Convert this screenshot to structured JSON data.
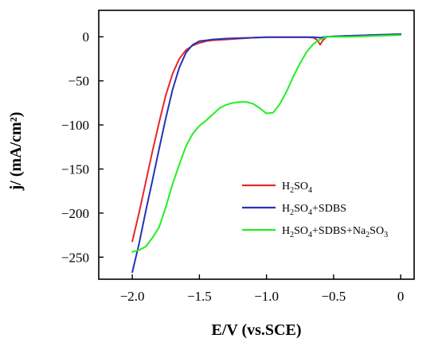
{
  "chart_data": {
    "type": "line",
    "xlabel": "E/V (vs.SCE)",
    "ylabel": "j/ (mA/cm²)",
    "xlim": [
      -2.25,
      0.1
    ],
    "ylim": [
      -275,
      30
    ],
    "xticks": [
      -2.0,
      -1.5,
      -1.0,
      -0.5,
      0
    ],
    "xtick_labels": [
      "−2.0",
      "−1.5",
      "−1.0",
      "−0.5",
      "0"
    ],
    "yticks": [
      0,
      -50,
      -100,
      -150,
      -200,
      -250
    ],
    "ytick_labels": [
      "0",
      "−50",
      "−100",
      "−150",
      "−200",
      "−250"
    ],
    "grid": false,
    "legend_position": "lower-right",
    "series": [
      {
        "name": "H2SO4",
        "legend": [
          [
            "H",
            "n"
          ],
          [
            "2",
            "sub"
          ],
          [
            "SO",
            "n"
          ],
          [
            "4",
            "sub"
          ]
        ],
        "color": "#e8272a",
        "x": [
          -2.0,
          -1.95,
          -1.9,
          -1.85,
          -1.8,
          -1.75,
          -1.7,
          -1.65,
          -1.6,
          -1.55,
          -1.5,
          -1.45,
          -1.4,
          -1.3,
          -1.2,
          -1.1,
          -1.0,
          -0.9,
          -0.8,
          -0.7,
          -0.65,
          -0.62,
          -0.6,
          -0.58,
          -0.55,
          -0.5,
          -0.4,
          -0.3,
          -0.2,
          -0.1,
          0.0
        ],
        "y": [
          -232,
          -200,
          -165,
          -130,
          -97,
          -66,
          -42,
          -25,
          -15,
          -10,
          -7,
          -5,
          -4,
          -3,
          -2,
          -1,
          -0.5,
          -0.5,
          -0.5,
          -0.5,
          -1,
          -4,
          -9,
          -4,
          0,
          0.5,
          1,
          1.5,
          2,
          2.5,
          3
        ]
      },
      {
        "name": "H2SO4+SDBS",
        "legend": [
          [
            "H",
            "n"
          ],
          [
            "2",
            "sub"
          ],
          [
            "SO",
            "n"
          ],
          [
            "4",
            "sub"
          ],
          [
            "+SDBS",
            "n"
          ]
        ],
        "color": "#2233b8",
        "x": [
          -2.0,
          -1.95,
          -1.9,
          -1.85,
          -1.8,
          -1.75,
          -1.7,
          -1.65,
          -1.6,
          -1.55,
          -1.5,
          -1.45,
          -1.4,
          -1.3,
          -1.2,
          -1.1,
          -1.0,
          -0.9,
          -0.8,
          -0.7,
          -0.65,
          -0.6,
          -0.55,
          -0.5,
          -0.4,
          -0.3,
          -0.2,
          -0.1,
          0.0
        ],
        "y": [
          -267,
          -235,
          -198,
          -163,
          -127,
          -92,
          -60,
          -35,
          -18,
          -9,
          -5,
          -4,
          -3,
          -2,
          -1.5,
          -1,
          -0.5,
          -0.5,
          -0.5,
          -0.5,
          -0.5,
          -1,
          0,
          0.5,
          1,
          1.5,
          2,
          2.5,
          3
        ]
      },
      {
        "name": "H2SO4+SDBS+Na2SO3",
        "legend": [
          [
            "H",
            "n"
          ],
          [
            "2",
            "sub"
          ],
          [
            "SO",
            "n"
          ],
          [
            "4",
            "sub"
          ],
          [
            "+SDBS+Na",
            "n"
          ],
          [
            "2",
            "sub"
          ],
          [
            "SO",
            "n"
          ],
          [
            "3",
            "sub"
          ]
        ],
        "color": "#22ee22",
        "x": [
          -2.0,
          -1.95,
          -1.9,
          -1.85,
          -1.8,
          -1.75,
          -1.7,
          -1.65,
          -1.6,
          -1.55,
          -1.5,
          -1.45,
          -1.4,
          -1.35,
          -1.3,
          -1.25,
          -1.2,
          -1.15,
          -1.1,
          -1.05,
          -1.0,
          -0.95,
          -0.9,
          -0.85,
          -0.8,
          -0.75,
          -0.7,
          -0.65,
          -0.6,
          -0.55,
          -0.5,
          -0.4,
          -0.3,
          -0.2,
          -0.1,
          0.0
        ],
        "y": [
          -244,
          -242,
          -238,
          -228,
          -216,
          -193,
          -167,
          -145,
          -124,
          -110,
          -101,
          -95,
          -88,
          -81,
          -77,
          -75,
          -74,
          -74,
          -76,
          -81,
          -87,
          -86,
          -76,
          -62,
          -45,
          -30,
          -17,
          -8,
          -3,
          0,
          0,
          0,
          0.5,
          1,
          1.5,
          2
        ]
      }
    ]
  }
}
